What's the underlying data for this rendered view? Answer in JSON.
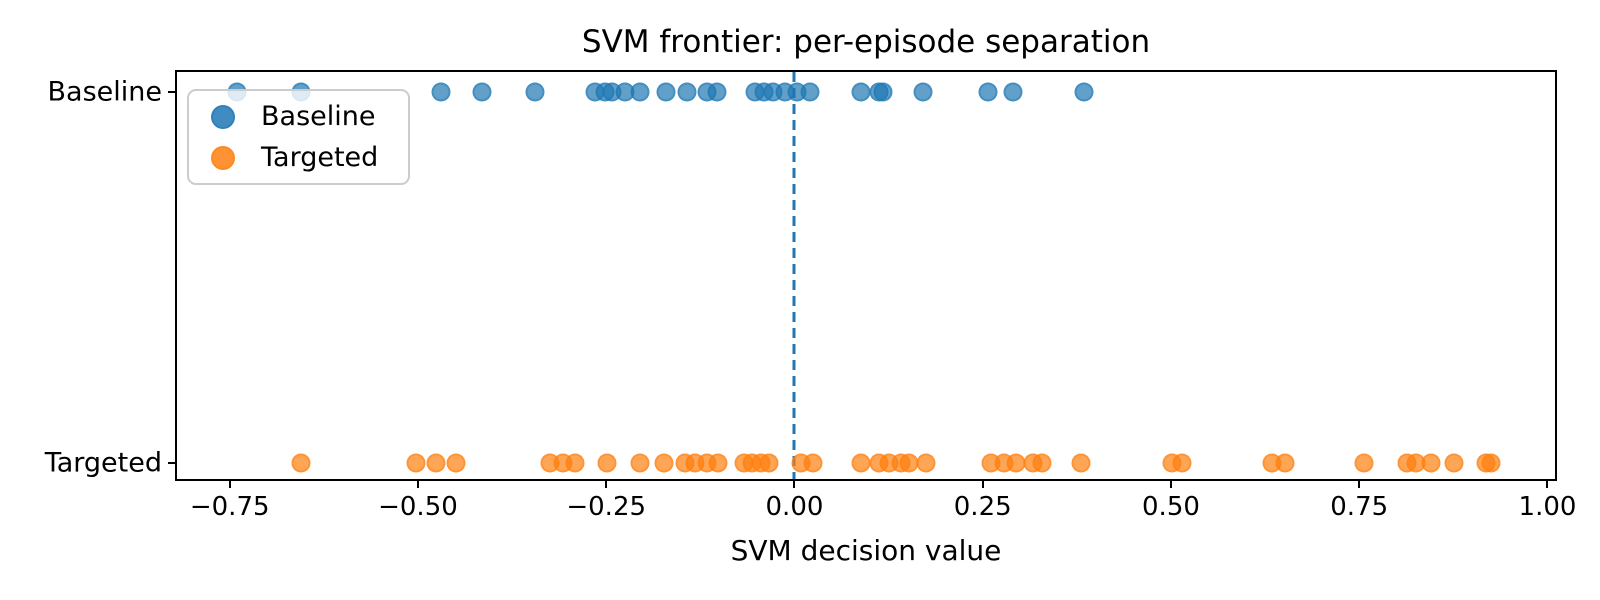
{
  "chart_data": {
    "type": "scatter",
    "title": "SVM frontier: per-episode separation",
    "xlabel": "SVM decision value",
    "ylabel": "",
    "categories": [
      "Baseline",
      "Targeted"
    ],
    "xlim": [
      -0.82,
      1.01
    ],
    "grid": false,
    "marker_alpha": 0.7,
    "x_ticks": [
      {
        "value": -0.75,
        "label": "−0.75"
      },
      {
        "value": -0.5,
        "label": "−0.50"
      },
      {
        "value": -0.25,
        "label": "−0.25"
      },
      {
        "value": 0.0,
        "label": "0.00"
      },
      {
        "value": 0.25,
        "label": "0.25"
      },
      {
        "value": 0.5,
        "label": "0.50"
      },
      {
        "value": 0.75,
        "label": "0.75"
      },
      {
        "value": 1.0,
        "label": "1.00"
      }
    ],
    "frontier_line": {
      "x": 0.0,
      "style": "dashed",
      "color": "#1f77b4"
    },
    "legend": {
      "position": "upper left",
      "entries": [
        {
          "label": "Baseline",
          "color": "#1f77b4"
        },
        {
          "label": "Targeted",
          "color": "#ff7f0e"
        }
      ]
    },
    "series": [
      {
        "name": "Baseline",
        "color": "#1f77b4",
        "row": "Baseline",
        "row_fraction": 0.049,
        "values": [
          -0.74,
          -0.655,
          -0.47,
          -0.415,
          -0.345,
          -0.265,
          -0.252,
          -0.242,
          -0.225,
          -0.205,
          -0.17,
          -0.143,
          -0.116,
          -0.103,
          -0.053,
          -0.04,
          -0.028,
          -0.013,
          0.003,
          0.02,
          0.089,
          0.112,
          0.118,
          0.171,
          0.257,
          0.29,
          0.384
        ]
      },
      {
        "name": "Targeted",
        "color": "#ff7f0e",
        "row": "Targeted",
        "row_fraction": 0.961,
        "values": [
          -0.655,
          -0.503,
          -0.476,
          -0.45,
          -0.325,
          -0.308,
          -0.292,
          -0.249,
          -0.205,
          -0.173,
          -0.146,
          -0.132,
          -0.116,
          -0.101,
          -0.067,
          -0.057,
          -0.044,
          -0.034,
          0.009,
          0.025,
          0.089,
          0.112,
          0.126,
          0.142,
          0.152,
          0.175,
          0.261,
          0.278,
          0.294,
          0.317,
          0.329,
          0.38,
          0.501,
          0.515,
          0.634,
          0.651,
          0.757,
          0.813,
          0.825,
          0.845,
          0.876,
          0.918,
          0.925
        ]
      }
    ]
  }
}
